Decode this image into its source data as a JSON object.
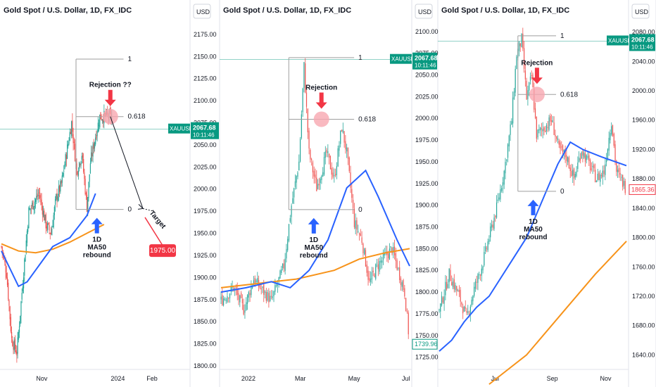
{
  "colors": {
    "up": "#26a69a",
    "down": "#ef5350",
    "ma50": "#2962ff",
    "ma200": "#f7931a",
    "fib": "#9e9e9e",
    "priceTag": "#089981",
    "targetTag": "#f23645",
    "circle": "#f7a8b0",
    "arrowRed": "#f23645",
    "arrowBlue": "#2962ff"
  },
  "chart_data": [
    {
      "type": "candlestick",
      "title": "Gold Spot / U.S. Dollar, 1D, FX_IDC",
      "currency_label": "USD",
      "ylim": [
        1800,
        2190
      ],
      "y_ticks": [
        "2175.00",
        "2150.00",
        "2125.00",
        "2100.00",
        "2075.00",
        "2050.00",
        "2025.00",
        "2000.00",
        "1975.00",
        "1950.00",
        "1925.00",
        "1900.00",
        "1875.00",
        "1850.00",
        "1825.00",
        "1800.00"
      ],
      "x_ticks": [
        {
          "label": "Nov",
          "at": 0.22
        },
        {
          "label": "2024",
          "at": 0.62
        },
        {
          "label": "Feb",
          "at": 0.8
        }
      ],
      "price_tag": {
        "symbol": "XAUUSD",
        "price": "2067.68",
        "time": "10:11:46",
        "value": 2067.68
      },
      "target_tag": {
        "value": "1975.00",
        "y": 1975
      },
      "fib": [
        {
          "label": "1",
          "value": 2147
        },
        {
          "label": "0.618",
          "value": 2082
        },
        {
          "label": "0",
          "value": 1977
        }
      ],
      "annotations": {
        "rejection": "Rejection ??",
        "target": "Target",
        "ma_note": [
          "1D",
          "MA50",
          "rebound"
        ]
      },
      "x_count": 130,
      "ma50_pts": [
        [
          0,
          1930
        ],
        [
          10,
          1910
        ],
        [
          20,
          1890
        ],
        [
          30,
          1895
        ],
        [
          45,
          1915
        ],
        [
          60,
          1935
        ],
        [
          80,
          1945
        ],
        [
          100,
          1970
        ],
        [
          110,
          1995
        ]
      ],
      "ma200_pts": [
        [
          0,
          1938
        ],
        [
          20,
          1930
        ],
        [
          40,
          1928
        ],
        [
          60,
          1932
        ],
        [
          80,
          1940
        ],
        [
          100,
          1950
        ],
        [
          120,
          1960
        ]
      ],
      "projection": {
        "from": 2082,
        "to": 1975
      },
      "path_anchors": [
        [
          0,
          1935
        ],
        [
          6,
          1905
        ],
        [
          12,
          1830
        ],
        [
          18,
          1815
        ],
        [
          22,
          1860
        ],
        [
          28,
          1930
        ],
        [
          32,
          1975
        ],
        [
          38,
          1985
        ],
        [
          44,
          1995
        ],
        [
          52,
          1960
        ],
        [
          58,
          1950
        ],
        [
          64,
          1990
        ],
        [
          70,
          2005
        ],
        [
          76,
          2040
        ],
        [
          82,
          2075
        ],
        [
          88,
          2020
        ],
        [
          94,
          2040
        ],
        [
          100,
          1980
        ],
        [
          104,
          2030
        ],
        [
          110,
          2060
        ],
        [
          115,
          2082
        ]
      ]
    },
    {
      "type": "candlestick",
      "title": "Gold Spot / U.S. Dollar, 1D, FX_IDC",
      "currency_label": "USD",
      "ylim": [
        1715,
        2112
      ],
      "y_ticks": [
        "2100.00",
        "2075.00",
        "2050.00",
        "2025.00",
        "2000.00",
        "1975.00",
        "1950.00",
        "1925.00",
        "1900.00",
        "1875.00",
        "1850.00",
        "1825.00",
        "1800.00",
        "1775.00",
        "1750.00",
        "1725.00"
      ],
      "x_ticks": [
        {
          "label": "2022",
          "at": 0.15
        },
        {
          "label": "Mar",
          "at": 0.42
        },
        {
          "label": "May",
          "at": 0.7
        },
        {
          "label": "Jul",
          "at": 0.97
        }
      ],
      "price_tag": {
        "symbol": "XAUUSD",
        "price": "2067.68",
        "time": "10:11:46",
        "value": 2067.68
      },
      "last_tag": {
        "value": "1739.96",
        "y": 1739.96
      },
      "fib": [
        {
          "label": "1",
          "value": 2070
        },
        {
          "label": "0.618",
          "value": 1999
        },
        {
          "label": "0",
          "value": 1895
        }
      ],
      "annotations": {
        "rejection": "Rejection",
        "ma_note": [
          "1D",
          "MA50",
          "rebound"
        ]
      },
      "x_count": 150,
      "ma50_pts": [
        [
          0,
          1800
        ],
        [
          20,
          1805
        ],
        [
          40,
          1812
        ],
        [
          55,
          1805
        ],
        [
          70,
          1825
        ],
        [
          85,
          1860
        ],
        [
          100,
          1920
        ],
        [
          115,
          1940
        ],
        [
          125,
          1910
        ],
        [
          140,
          1860
        ],
        [
          150,
          1830
        ]
      ],
      "ma200_pts": [
        [
          0,
          1805
        ],
        [
          30,
          1810
        ],
        [
          60,
          1815
        ],
        [
          90,
          1825
        ],
        [
          110,
          1838
        ],
        [
          130,
          1845
        ],
        [
          150,
          1850
        ]
      ],
      "path_anchors": [
        [
          0,
          1790
        ],
        [
          10,
          1805
        ],
        [
          18,
          1780
        ],
        [
          26,
          1815
        ],
        [
          34,
          1800
        ],
        [
          40,
          1790
        ],
        [
          50,
          1830
        ],
        [
          56,
          1900
        ],
        [
          62,
          1950
        ],
        [
          66,
          2060
        ],
        [
          70,
          1960
        ],
        [
          76,
          1920
        ],
        [
          84,
          1960
        ],
        [
          90,
          1930
        ],
        [
          96,
          1990
        ],
        [
          100,
          1960
        ],
        [
          106,
          1880
        ],
        [
          112,
          1860
        ],
        [
          118,
          1810
        ],
        [
          124,
          1830
        ],
        [
          130,
          1840
        ],
        [
          136,
          1850
        ],
        [
          140,
          1830
        ],
        [
          146,
          1800
        ],
        [
          150,
          1740
        ]
      ]
    },
    {
      "type": "candlestick",
      "title": "Gold Spot / U.S. Dollar, 1D, FX_IDC",
      "currency_label": "USD",
      "ylim": [
        1625,
        2095
      ],
      "y_ticks": [
        "2080.00",
        "2040.00",
        "2000.00",
        "1960.00",
        "1920.00",
        "1880.00",
        "1840.00",
        "1800.00",
        "1760.00",
        "1720.00",
        "1680.00",
        "1640.00"
      ],
      "x_ticks": [
        {
          "label": "Jul",
          "at": 0.3
        },
        {
          "label": "Sep",
          "at": 0.6
        },
        {
          "label": "Nov",
          "at": 0.88
        }
      ],
      "price_tag": {
        "symbol": "XAUUSD",
        "price": "2067.68",
        "time": "10:11:46",
        "value": 2067.68
      },
      "last_tag": {
        "value": "1865.36",
        "y": 1865.36
      },
      "fib": [
        {
          "label": "1",
          "value": 2075
        },
        {
          "label": "0.618",
          "value": 1995
        },
        {
          "label": "0",
          "value": 1863
        }
      ],
      "annotations": {
        "rejection": "Rejection",
        "ma_note": [
          "1D",
          "MA50",
          "rebound"
        ]
      },
      "x_count": 150,
      "ma50_pts": [
        [
          0,
          1645
        ],
        [
          10,
          1660
        ],
        [
          20,
          1685
        ],
        [
          30,
          1705
        ],
        [
          40,
          1720
        ],
        [
          55,
          1760
        ],
        [
          70,
          1800
        ],
        [
          85,
          1860
        ],
        [
          95,
          1900
        ],
        [
          105,
          1930
        ],
        [
          115,
          1920
        ],
        [
          130,
          1910
        ],
        [
          150,
          1898
        ]
      ],
      "ma200_pts": [
        [
          40,
          1600
        ],
        [
          70,
          1640
        ],
        [
          100,
          1700
        ],
        [
          125,
          1750
        ],
        [
          150,
          1795
        ]
      ],
      "path_anchors": [
        [
          0,
          1700
        ],
        [
          8,
          1750
        ],
        [
          16,
          1720
        ],
        [
          22,
          1690
        ],
        [
          28,
          1730
        ],
        [
          34,
          1760
        ],
        [
          40,
          1800
        ],
        [
          46,
          1840
        ],
        [
          52,
          1890
        ],
        [
          58,
          1960
        ],
        [
          62,
          2050
        ],
        [
          66,
          2070
        ],
        [
          70,
          1990
        ],
        [
          74,
          2020
        ],
        [
          78,
          1940
        ],
        [
          84,
          1950
        ],
        [
          90,
          1960
        ],
        [
          96,
          1920
        ],
        [
          102,
          1910
        ],
        [
          108,
          1880
        ],
        [
          114,
          1920
        ],
        [
          120,
          1900
        ],
        [
          126,
          1880
        ],
        [
          132,
          1890
        ],
        [
          138,
          1960
        ],
        [
          142,
          1890
        ],
        [
          150,
          1866
        ]
      ]
    }
  ]
}
